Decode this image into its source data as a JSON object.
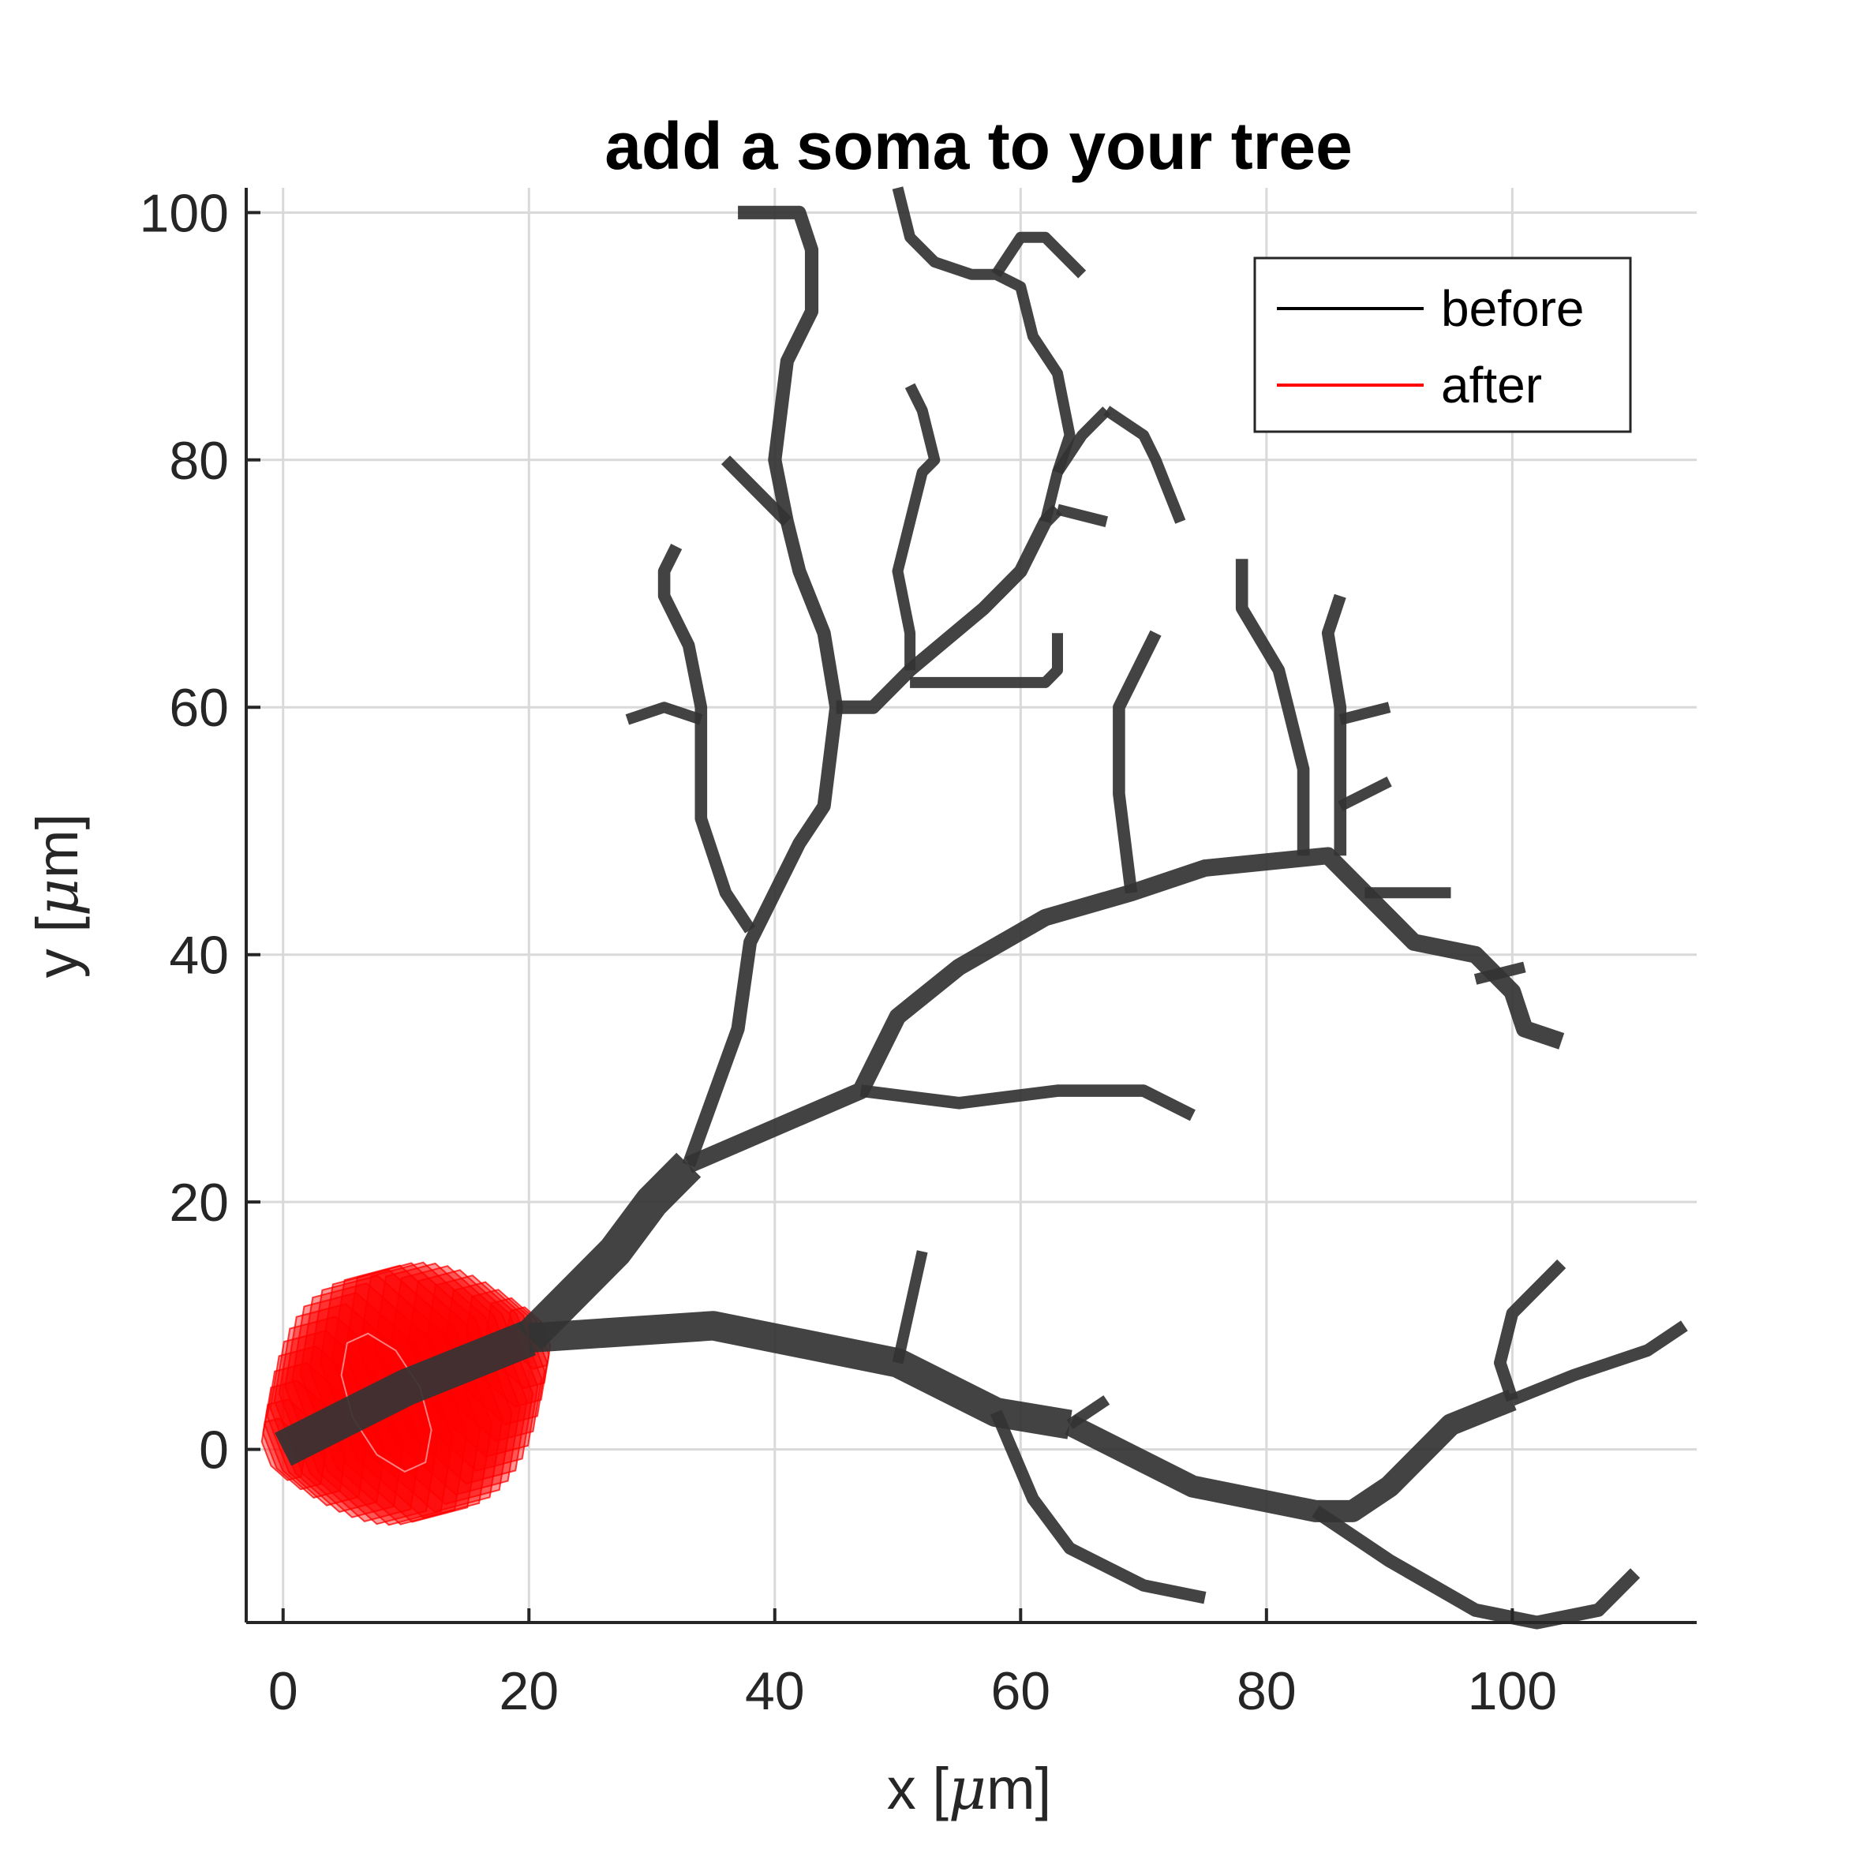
{
  "chart_data": {
    "type": "line",
    "title": "add a soma to your tree",
    "xlabel": "x [μm]",
    "ylabel": "y [μm]",
    "xlim": [
      -3,
      115
    ],
    "ylim": [
      -14,
      102
    ],
    "x_ticks": [
      0,
      20,
      40,
      60,
      80,
      100
    ],
    "y_ticks": [
      0,
      20,
      40,
      60,
      80,
      100
    ],
    "x_tick_labels": [
      "0",
      "20",
      "40",
      "60",
      "80",
      "100"
    ],
    "y_tick_labels": [
      "0",
      "20",
      "40",
      "60",
      "80",
      "100"
    ],
    "grid": true,
    "legend": {
      "position": "top-right",
      "entries": [
        "before",
        "after"
      ]
    },
    "series": [
      {
        "name": "before",
        "color": "#333333",
        "branches": [
          {
            "width": 3.0,
            "points": [
              [
                0,
                0
              ],
              [
                10,
                5
              ],
              [
                20,
                9
              ]
            ]
          },
          {
            "width": 2.8,
            "points": [
              [
                20,
                9
              ],
              [
                27,
                16
              ],
              [
                30,
                20
              ],
              [
                33,
                23
              ]
            ]
          },
          {
            "width": 1.1,
            "points": [
              [
                33,
                23
              ],
              [
                37,
                34
              ],
              [
                38,
                41
              ],
              [
                42,
                49
              ],
              [
                44,
                52
              ],
              [
                45,
                60
              ],
              [
                44,
                66
              ],
              [
                42,
                71
              ],
              [
                41,
                75
              ],
              [
                40,
                80
              ],
              [
                41,
                88
              ],
              [
                43,
                92
              ],
              [
                43,
                97
              ],
              [
                42,
                100
              ],
              [
                40,
                100
              ],
              [
                37,
                100
              ]
            ]
          },
          {
            "width": 1.0,
            "points": [
              [
                41,
                75
              ],
              [
                36,
                80
              ]
            ]
          },
          {
            "width": 1.0,
            "points": [
              [
                38,
                42
              ],
              [
                36,
                45
              ],
              [
                34,
                51
              ],
              [
                34,
                60
              ],
              [
                33,
                65
              ],
              [
                31,
                69
              ],
              [
                31,
                71
              ],
              [
                32,
                73
              ]
            ]
          },
          {
            "width": 0.9,
            "points": [
              [
                34,
                59
              ],
              [
                31,
                60
              ],
              [
                28,
                59
              ]
            ]
          },
          {
            "width": 1.1,
            "points": [
              [
                45,
                60
              ],
              [
                48,
                60
              ],
              [
                51,
                63
              ],
              [
                57,
                68
              ],
              [
                60,
                71
              ],
              [
                62,
                75
              ],
              [
                63,
                76
              ]
            ]
          },
          {
            "width": 0.9,
            "points": [
              [
                62,
                75
              ],
              [
                63,
                79
              ],
              [
                65,
                82
              ],
              [
                67,
                84
              ]
            ]
          },
          {
            "width": 0.9,
            "points": [
              [
                67,
                84
              ],
              [
                70,
                82
              ],
              [
                71,
                80
              ],
              [
                73,
                75
              ]
            ]
          },
          {
            "width": 0.9,
            "points": [
              [
                63,
                79
              ],
              [
                64,
                82
              ],
              [
                63,
                87
              ],
              [
                61,
                90
              ],
              [
                60,
                94
              ],
              [
                58,
                95
              ],
              [
                56,
                95
              ],
              [
                53,
                96
              ],
              [
                51,
                98
              ],
              [
                50,
                102
              ]
            ]
          },
          {
            "width": 0.9,
            "points": [
              [
                58,
                95
              ],
              [
                60,
                98
              ],
              [
                62,
                98
              ],
              [
                65,
                95
              ]
            ]
          },
          {
            "width": 0.9,
            "points": [
              [
                63,
                76
              ],
              [
                67,
                75
              ]
            ]
          },
          {
            "width": 0.9,
            "points": [
              [
                51,
                63
              ],
              [
                51,
                66
              ],
              [
                50,
                71
              ],
              [
                51,
                75
              ],
              [
                52,
                79
              ],
              [
                53,
                80
              ],
              [
                52,
                84
              ],
              [
                51,
                86
              ]
            ]
          },
          {
            "width": 0.9,
            "points": [
              [
                51,
                62
              ],
              [
                55,
                62
              ],
              [
                62,
                62
              ],
              [
                63,
                63
              ],
              [
                63,
                66
              ]
            ]
          },
          {
            "width": 1.4,
            "points": [
              [
                33,
                23
              ],
              [
                47,
                29
              ],
              [
                50,
                35
              ],
              [
                55,
                39
              ],
              [
                62,
                43
              ],
              [
                69,
                45
              ],
              [
                75,
                47
              ],
              [
                85,
                48
              ],
              [
                88,
                45
              ],
              [
                92,
                41
              ],
              [
                97,
                40
              ],
              [
                100,
                37
              ],
              [
                101,
                34
              ],
              [
                104,
                33
              ]
            ]
          },
          {
            "width": 1.0,
            "points": [
              [
                47,
                29
              ],
              [
                55,
                28
              ],
              [
                63,
                29
              ],
              [
                70,
                29
              ],
              [
                74,
                27
              ]
            ]
          },
          {
            "width": 1.0,
            "points": [
              [
                69,
                45
              ],
              [
                68,
                53
              ],
              [
                68,
                60
              ],
              [
                71,
                66
              ]
            ]
          },
          {
            "width": 1.0,
            "points": [
              [
                83,
                48
              ],
              [
                83,
                55
              ],
              [
                81,
                63
              ],
              [
                78,
                68
              ],
              [
                78,
                72
              ]
            ]
          },
          {
            "width": 1.0,
            "points": [
              [
                86,
                48
              ],
              [
                86,
                53
              ],
              [
                86,
                60
              ],
              [
                85,
                66
              ],
              [
                86,
                69
              ]
            ]
          },
          {
            "width": 0.9,
            "points": [
              [
                86,
                59
              ],
              [
                90,
                60
              ]
            ]
          },
          {
            "width": 0.9,
            "points": [
              [
                86,
                52
              ],
              [
                90,
                54
              ]
            ]
          },
          {
            "width": 0.9,
            "points": [
              [
                88,
                45
              ],
              [
                95,
                45
              ]
            ]
          },
          {
            "width": 0.9,
            "points": [
              [
                97,
                38
              ],
              [
                101,
                39
              ]
            ]
          },
          {
            "width": 2.4,
            "points": [
              [
                20,
                9
              ],
              [
                35,
                10
              ],
              [
                50,
                7
              ],
              [
                58,
                3
              ],
              [
                64,
                2
              ]
            ]
          },
          {
            "width": 1.8,
            "points": [
              [
                64,
                2
              ],
              [
                74,
                -3
              ],
              [
                84,
                -5
              ],
              [
                87,
                -5
              ],
              [
                90,
                -3
              ],
              [
                95,
                2
              ],
              [
                100,
                4
              ]
            ]
          },
          {
            "width": 1.0,
            "points": [
              [
                100,
                4
              ],
              [
                99,
                7
              ],
              [
                100,
                11
              ],
              [
                103,
                14
              ],
              [
                104,
                15
              ]
            ]
          },
          {
            "width": 1.0,
            "points": [
              [
                100,
                4
              ],
              [
                105,
                6
              ],
              [
                108,
                7
              ],
              [
                111,
                8
              ],
              [
                114,
                10
              ]
            ]
          },
          {
            "width": 1.1,
            "points": [
              [
                84,
                -5
              ],
              [
                90,
                -9
              ],
              [
                97,
                -13
              ],
              [
                102,
                -14
              ],
              [
                107,
                -13
              ],
              [
                110,
                -10
              ]
            ]
          },
          {
            "width": 1.0,
            "points": [
              [
                58,
                3
              ],
              [
                61,
                -4
              ],
              [
                64,
                -8
              ],
              [
                70,
                -11
              ],
              [
                75,
                -12
              ]
            ]
          },
          {
            "width": 0.9,
            "points": [
              [
                50,
                7
              ],
              [
                52,
                16
              ]
            ]
          },
          {
            "width": 0.9,
            "points": [
              [
                64,
                2
              ],
              [
                67,
                4
              ]
            ]
          }
        ]
      },
      {
        "name": "after",
        "color": "#ff0000",
        "soma": {
          "from": [
            0,
            0
          ],
          "to": [
            20,
            9
          ],
          "max_radius": 11
        }
      }
    ]
  }
}
